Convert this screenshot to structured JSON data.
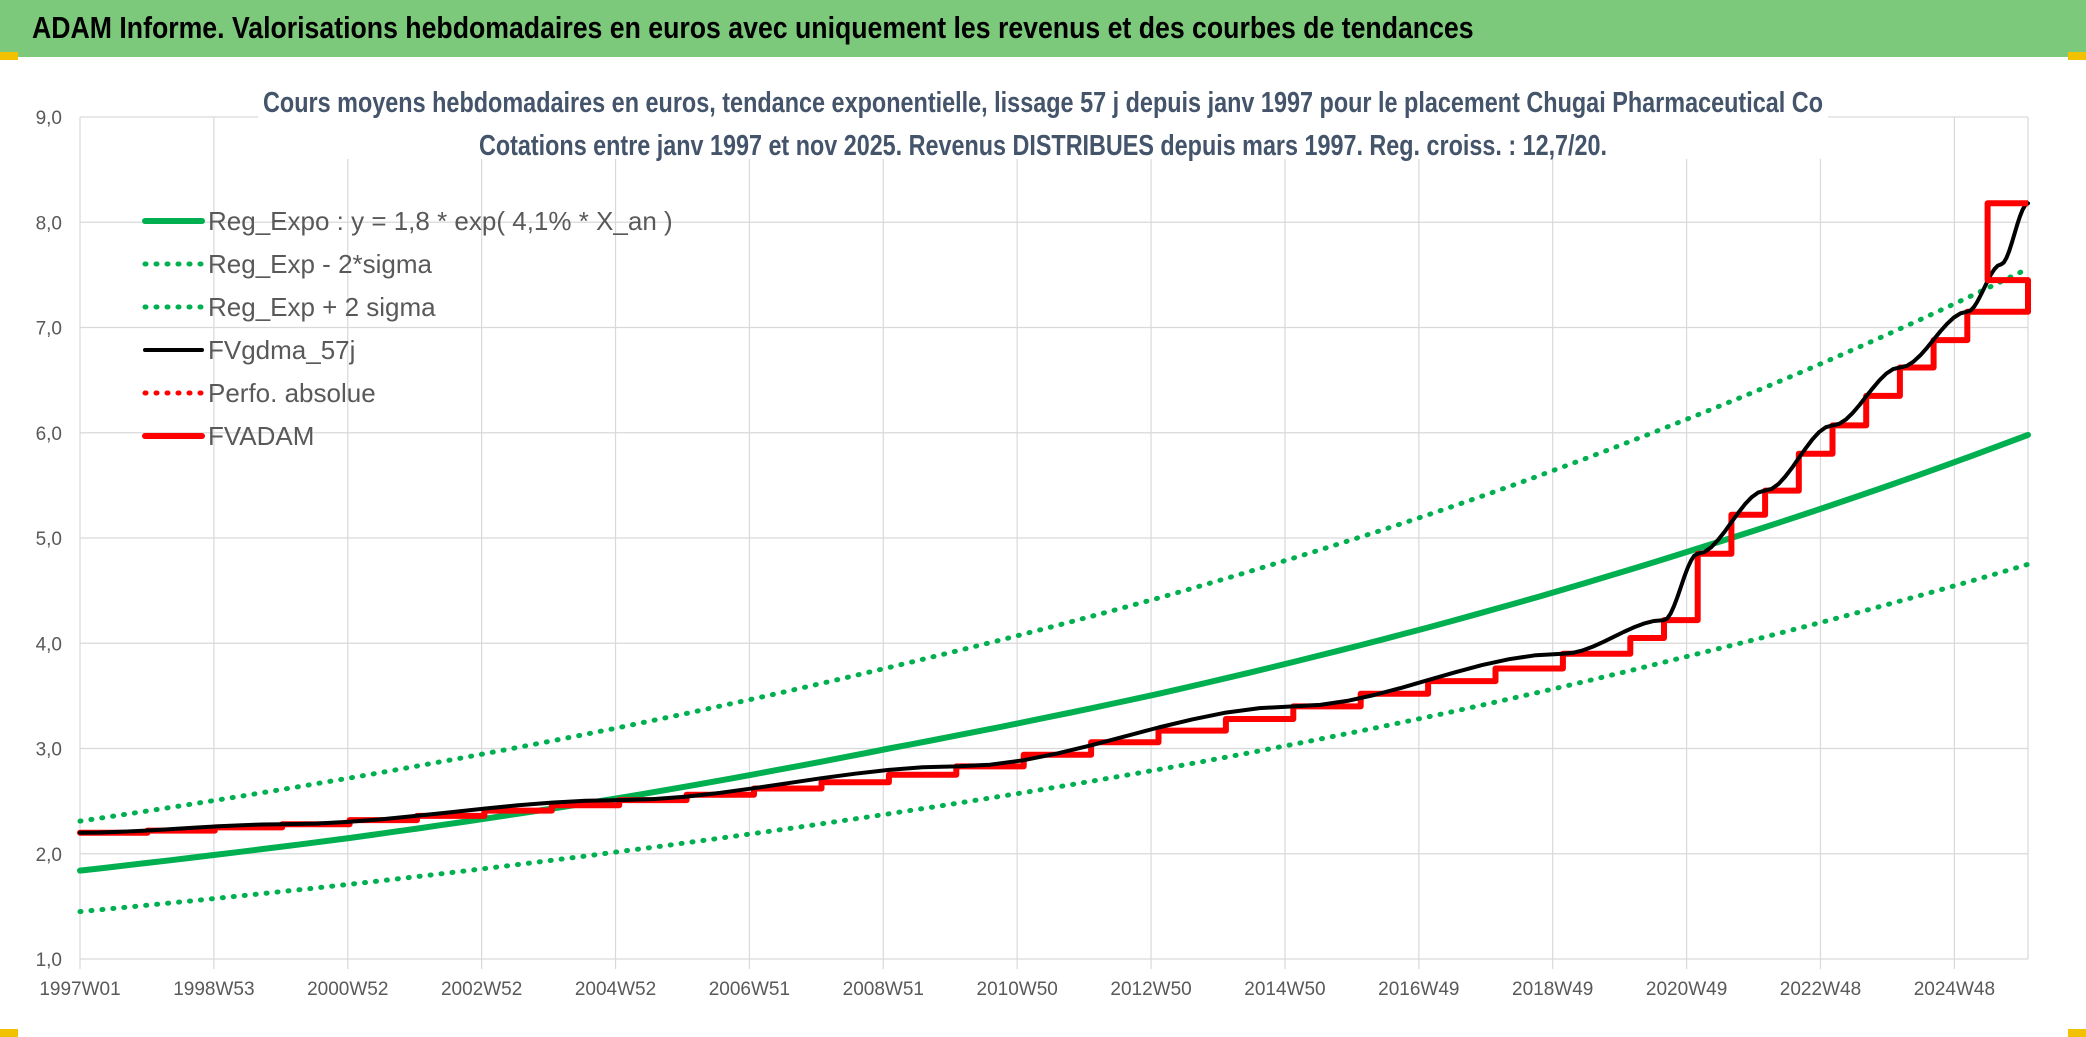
{
  "banner": {
    "title": "ADAM Informe. Valorisations hebdomadaires en euros avec uniquement les revenus et des courbes de tendances"
  },
  "colors": {
    "banner_bg": "#7dc97c",
    "trend_green": "#00b050",
    "fvadam_red": "#ff0000",
    "fvgdma_black": "#000000",
    "text_blue_grey": "#44546a",
    "axis_grey": "#595959",
    "grid": "#d9d9d9"
  },
  "chart_data": {
    "type": "line",
    "title_line1": "Cours moyens hebdomadaires en euros, tendance exponentielle, lissage 57 j depuis janv 1997 pour le placement Chugai Pharmaceutical Co",
    "title_line2": "Cotations entre janv 1997 et nov 2025. Revenus DISTRIBUES depuis mars 1997. Reg. croiss. : 12,7/20.",
    "x_labels": [
      "1997W01",
      "1998W53",
      "2000W52",
      "2002W52",
      "2004W52",
      "2006W51",
      "2008W51",
      "2010W50",
      "2012W50",
      "2014W50",
      "2016W49",
      "2018W49",
      "2020W49",
      "2022W48",
      "2024W48"
    ],
    "y_ticks": [
      "1,0",
      "2,0",
      "3,0",
      "4,0",
      "5,0",
      "6,0",
      "7,0",
      "8,0",
      "9,0"
    ],
    "ylim": [
      1,
      9
    ],
    "x_range_years": [
      1997.0,
      2025.9
    ],
    "grid": true,
    "legend_position": "top-left",
    "legend": [
      {
        "name": "Reg_Expo : y = 1,8 * exp( 4,1% *  X_an )",
        "color": "#00b050",
        "style": "solid-thick"
      },
      {
        "name": "Reg_Exp - 2*sigma",
        "color": "#00b050",
        "style": "dotted"
      },
      {
        "name": "Reg_Exp + 2 sigma",
        "color": "#00b050",
        "style": "dotted"
      },
      {
        "name": "FVgdma_57j",
        "color": "#000000",
        "style": "solid"
      },
      {
        "name": "Perfo. absolue",
        "color": "#ff0000",
        "style": "dotted"
      },
      {
        "name": "FVADAM",
        "color": "#ff0000",
        "style": "solid-thick"
      }
    ],
    "series": [
      {
        "name": "Reg_Expo : y = 1,8 * exp( 4,1% *  X_an )",
        "x": [
          1997.0,
          2001.0,
          2005.0,
          2009.0,
          2013.0,
          2017.0,
          2021.0,
          2025.9
        ],
        "y": [
          1.84,
          2.15,
          2.53,
          3.0,
          3.52,
          4.15,
          4.9,
          5.98
        ]
      },
      {
        "name": "Reg_Exp - 2*sigma",
        "x": [
          1997.0,
          2001.0,
          2005.0,
          2009.0,
          2013.0,
          2017.0,
          2021.0,
          2025.9
        ],
        "y": [
          1.45,
          1.71,
          2.02,
          2.38,
          2.8,
          3.3,
          3.9,
          4.75
        ]
      },
      {
        "name": "Reg_Exp + 2 sigma",
        "x": [
          1997.0,
          2001.0,
          2005.0,
          2009.0,
          2013.0,
          2017.0,
          2021.0,
          2025.9
        ],
        "y": [
          2.31,
          2.72,
          3.2,
          3.77,
          4.43,
          5.22,
          6.17,
          7.56
        ]
      },
      {
        "name": "FVADAM",
        "x": [
          1997.0,
          1998.0,
          1999.0,
          2000.0,
          2001.0,
          2002.0,
          2003.0,
          2004.0,
          2005.0,
          2006.0,
          2007.0,
          2008.0,
          2009.0,
          2010.0,
          2011.0,
          2012.0,
          2013.0,
          2014.0,
          2015.0,
          2016.0,
          2017.0,
          2018.0,
          2019.0,
          2020.0,
          2020.5,
          2021.0,
          2021.5,
          2022.0,
          2022.5,
          2023.0,
          2023.5,
          2024.0,
          2024.5,
          2025.0,
          2025.9
        ],
        "y": [
          2.2,
          2.22,
          2.25,
          2.28,
          2.32,
          2.36,
          2.41,
          2.46,
          2.51,
          2.56,
          2.62,
          2.68,
          2.75,
          2.83,
          2.94,
          3.06,
          3.17,
          3.28,
          3.4,
          3.52,
          3.64,
          3.76,
          3.9,
          4.05,
          4.22,
          4.85,
          5.22,
          5.45,
          5.8,
          6.07,
          6.35,
          6.62,
          6.88,
          7.15,
          7.45
        ]
      },
      {
        "name": "FVgdma_57j",
        "x": [
          1997.0,
          2000.0,
          2005.0,
          2010.0,
          2015.0,
          2019.0,
          2020.5,
          2021.0,
          2022.0,
          2023.0,
          2024.0,
          2025.0,
          2025.5,
          2025.9
        ],
        "y": [
          2.2,
          2.28,
          2.51,
          2.83,
          3.4,
          3.9,
          4.22,
          4.85,
          5.45,
          6.07,
          6.62,
          7.15,
          7.6,
          8.18
        ]
      }
    ]
  }
}
